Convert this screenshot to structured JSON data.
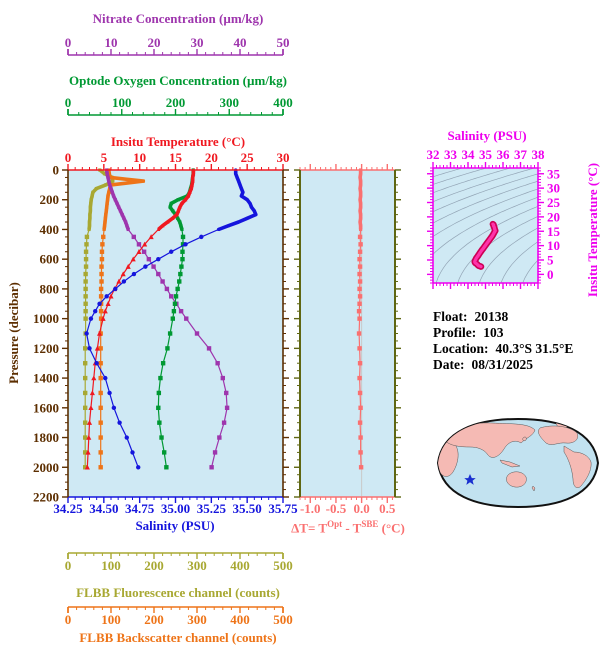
{
  "colors": {
    "plot_bg": "#cfe9f4",
    "temperature": "#f01820",
    "salinity": "#1515dd",
    "oxygen": "#009933",
    "nitrate": "#9e35ad",
    "fluorescence": "#a8a832",
    "backscatter": "#ee7418",
    "pressure": "#5c2e00",
    "delta": "#fa7070",
    "delta_frame": "#5f6612",
    "delta_zero_line": "#c9c9c9",
    "ts_axis": "#ee00ee",
    "ts_curve": "#ff33aa",
    "ts_curve_edge": "#cc0055",
    "contour": "#8899aa",
    "info_text": "#000000",
    "map_ocean": "#c2e2f0",
    "map_land": "#f5bab4",
    "map_outline": "#111111",
    "star": "#1a2fd0"
  },
  "labels": {
    "nitrate_title": "Nitrate Concentration (µm/kg)",
    "oxygen_title": "Optode Oxygen Concentration (µm/kg)",
    "temperature_title": "Insitu Temperature (°C)",
    "pressure_title": "Pressure (decibar)",
    "salinity_title": "Salinity (PSU)",
    "fluorescence_title": "FLBB Fluorescence channel (counts)",
    "backscatter_title": "FLBB Backscatter channel (counts)",
    "delta_title": {
      "pre": "ΔT= T",
      "sup1": "Opt",
      "mid": " - T",
      "sup2": "SBE",
      "post": " (°C)"
    },
    "ts_title": "Salinity (PSU)",
    "ts_temp_title": "Insitu Temperature (°C)"
  },
  "info": {
    "float_label": "Float:",
    "float_value": "20138",
    "profile_label": "Profile:",
    "profile_value": "103",
    "location_label": "Location:",
    "location_value": "40.3°S 31.5°E",
    "date_label": "Date:",
    "date_value": "08/31/2025"
  },
  "chart_data": [
    {
      "id": "profiles",
      "type": "line",
      "orientation": "vertical-profile",
      "ylabel": "Pressure (decibar)",
      "ylim": [
        0,
        2200
      ],
      "y_major": 200,
      "y_minor": 50,
      "y_tick_labels": [
        "0",
        "200",
        "400",
        "600",
        "800",
        "1000",
        "1200",
        "1400",
        "1600",
        "1800",
        "2000",
        "2200"
      ],
      "pressure": [
        0,
        25,
        50,
        75,
        100,
        125,
        150,
        175,
        200,
        225,
        250,
        275,
        300,
        325,
        350,
        375,
        400,
        450,
        500,
        550,
        600,
        650,
        700,
        750,
        800,
        850,
        900,
        950,
        1000,
        1100,
        1200,
        1300,
        1400,
        1500,
        1600,
        1700,
        1800,
        1900,
        2000
      ],
      "series": [
        {
          "key": "fluorescence",
          "name": "FLBB Fluorescence channel (counts)",
          "marker": "square",
          "axis": {
            "min": 0,
            "max": 500,
            "major": 100,
            "minor": 20,
            "tick_values": [
              0,
              100,
              200,
              300,
              400,
              500
            ],
            "ticks": [
              "0",
              "100",
              "200",
              "300",
              "400",
              "500"
            ]
          },
          "values": [
            74,
            85,
            103,
            104,
            88,
            66,
            58,
            56,
            54,
            53,
            52,
            52,
            51,
            51,
            50,
            50,
            49,
            44,
            43,
            42,
            42,
            42,
            41,
            41,
            41,
            41,
            41,
            41,
            41,
            41,
            40,
            40,
            40,
            40,
            40,
            40,
            40,
            40,
            40
          ]
        },
        {
          "key": "backscatter",
          "name": "FLBB Backscatter channel (counts)",
          "marker": "square",
          "axis": {
            "min": 0,
            "max": 500,
            "major": 100,
            "minor": 20,
            "tick_values": [
              0,
              100,
              200,
              300,
              400,
              500
            ],
            "ticks": [
              "0",
              "100",
              "200",
              "300",
              "400",
              "500"
            ]
          },
          "values": [
            95,
            96,
            98,
            175,
            100,
            97,
            95,
            93,
            92,
            91,
            90,
            89,
            88,
            87,
            86,
            85,
            84,
            82,
            80,
            79,
            79,
            78,
            78,
            78,
            77,
            77,
            77,
            77,
            77,
            76,
            76,
            76,
            76,
            76,
            76,
            76,
            76,
            76,
            76
          ]
        },
        {
          "key": "nitrate",
          "name": "Nitrate Concentration (µm/kg)",
          "marker": "square",
          "axis": {
            "min": 0,
            "max": 50,
            "major": 10,
            "minor": 2,
            "tick_values": [
              0,
              10,
              20,
              30,
              40,
              50
            ],
            "ticks": [
              "0",
              "10",
              "20",
              "30",
              "40",
              "50"
            ]
          },
          "values": [
            9.0,
            9.1,
            9.3,
            9.5,
            9.7,
            10.0,
            10.3,
            10.6,
            11.0,
            11.4,
            11.8,
            12.2,
            12.6,
            13.0,
            13.4,
            13.7,
            14.0,
            15.3,
            16.5,
            17.7,
            18.8,
            19.9,
            21.0,
            22.0,
            23.0,
            24.0,
            25.2,
            26.3,
            27.5,
            30.0,
            32.8,
            34.8,
            36.0,
            36.8,
            37.0,
            36.3,
            35.2,
            34.2,
            33.4
          ]
        },
        {
          "key": "oxygen",
          "name": "Optode Oxygen Concentration (µm/kg)",
          "marker": "square",
          "axis": {
            "min": 0,
            "max": 400,
            "major": 100,
            "minor": 20,
            "tick_values": [
              0,
              100,
              200,
              300,
              400
            ],
            "ticks": [
              "0",
              "100",
              "200",
              "300",
              "400"
            ]
          },
          "values": [
            233,
            233,
            232,
            231,
            230,
            228,
            226,
            222,
            205,
            192,
            190,
            195,
            200,
            204,
            208,
            210,
            212,
            214,
            214,
            213,
            213,
            211,
            209,
            207,
            204,
            201,
            199,
            197,
            195,
            190,
            185,
            177,
            172,
            169,
            168,
            170,
            174,
            179,
            183
          ]
        },
        {
          "key": "temperature",
          "name": "Insitu Temperature (°C)",
          "marker": "triangle",
          "axis": {
            "min": 0,
            "max": 30,
            "major": 5,
            "minor": 1,
            "tick_values": [
              0,
              5,
              10,
              15,
              20,
              25,
              30
            ],
            "ticks": [
              "0",
              "5",
              "10",
              "15",
              "20",
              "25",
              "30"
            ]
          },
          "values": [
            17.5,
            17.5,
            17.4,
            17.4,
            17.3,
            17.2,
            17.0,
            16.8,
            16.4,
            15.9,
            15.6,
            15.4,
            15.2,
            14.6,
            13.9,
            13.2,
            12.6,
            11.6,
            10.7,
            9.9,
            9.1,
            8.4,
            7.7,
            7.1,
            6.5,
            6.0,
            5.6,
            5.2,
            4.9,
            4.4,
            4.1,
            3.8,
            3.6,
            3.4,
            3.2,
            3.0,
            2.9,
            2.8,
            2.7
          ]
        },
        {
          "key": "salinity",
          "name": "Salinity (PSU)",
          "marker": "circle",
          "axis": {
            "min": 34.25,
            "max": 35.75,
            "major": 0.25,
            "minor": 0.05,
            "tick_values": [
              34.25,
              34.5,
              34.75,
              35.0,
              35.25,
              35.5,
              35.75
            ],
            "ticks": [
              "34.25",
              "34.50",
              "34.75",
              "35.00",
              "35.25",
              "35.50",
              "35.75"
            ]
          },
          "values": [
            35.42,
            35.42,
            35.43,
            35.44,
            35.45,
            35.46,
            35.47,
            35.46,
            35.5,
            35.52,
            35.53,
            35.55,
            35.56,
            35.5,
            35.44,
            35.37,
            35.3,
            35.18,
            35.07,
            34.97,
            34.88,
            34.79,
            34.71,
            34.64,
            34.58,
            34.52,
            34.47,
            34.44,
            34.41,
            34.38,
            34.4,
            34.45,
            34.51,
            34.54,
            34.57,
            34.61,
            34.66,
            34.7,
            34.74
          ]
        }
      ]
    },
    {
      "id": "delta_t",
      "type": "line",
      "xlabel": "ΔT= TOpt - TSBE (°C)",
      "xlim": [
        -1.2,
        0.65
      ],
      "x_major": 0.5,
      "x_minor": 0.1,
      "tick_values": [
        -1.0,
        -0.5,
        0.0,
        0.5
      ],
      "tick_labels": [
        "-1.0",
        "-0.5",
        "0.0",
        "0.5"
      ],
      "pressure_from": "profiles",
      "values": [
        -0.02,
        -0.02,
        -0.03,
        -0.02,
        -0.02,
        -0.03,
        -0.02,
        -0.02,
        -0.03,
        -0.02,
        -0.02,
        -0.03,
        -0.02,
        -0.02,
        -0.03,
        -0.02,
        -0.02,
        -0.03,
        -0.02,
        -0.03,
        -0.04,
        -0.03,
        -0.04,
        -0.03,
        -0.04,
        -0.03,
        -0.04,
        -0.05,
        -0.04,
        -0.05,
        -0.04,
        -0.03,
        -0.04,
        -0.03,
        -0.02,
        -0.03,
        -0.02,
        -0.02,
        -0.01
      ]
    },
    {
      "id": "ts_diagram",
      "type": "line",
      "title": "Salinity (PSU)",
      "xlim": [
        32,
        38
      ],
      "x_major": 1,
      "x_minor": 0.2,
      "x_tick_values": [
        32,
        33,
        34,
        35,
        36,
        37,
        38
      ],
      "x_ticks": [
        "32",
        "33",
        "34",
        "35",
        "36",
        "37",
        "38"
      ],
      "ylabel": "Insitu Temperature (°C)",
      "ylim": [
        -3,
        37
      ],
      "y_major": 5,
      "y_minor": 1,
      "y_tick_values": [
        0,
        5,
        10,
        15,
        20,
        25,
        30,
        35
      ],
      "y_ticks": [
        "0",
        "5",
        "10",
        "15",
        "20",
        "25",
        "30",
        "35"
      ],
      "curve_source": "salinity vs temperature from profiles chart",
      "isopycnals": {
        "from": 18,
        "to": 30,
        "step": 1
      }
    }
  ]
}
